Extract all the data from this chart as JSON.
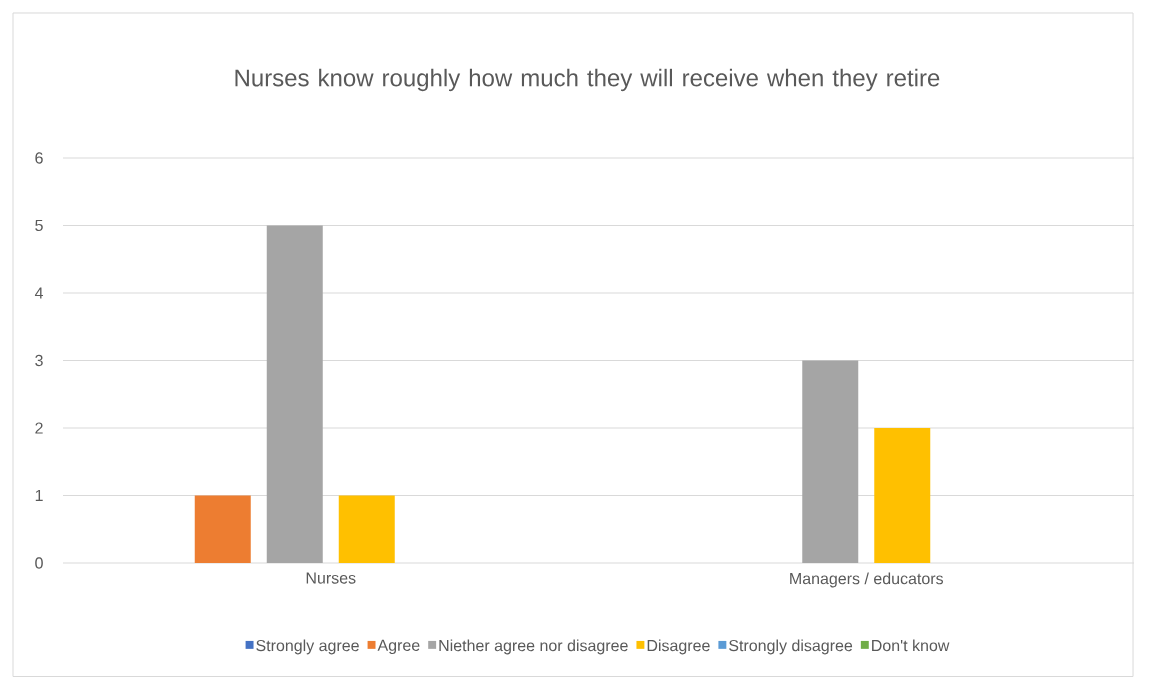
{
  "chart_data": {
    "type": "bar",
    "title": "Nurses know roughly how much they will receive when they retire",
    "categories": [
      "Nurses",
      "Managers / educators"
    ],
    "series": [
      {
        "name": "Strongly agree",
        "color": "#4472c4",
        "values": [
          0,
          0
        ]
      },
      {
        "name": "Agree",
        "color": "#ed7d31",
        "values": [
          1,
          0
        ]
      },
      {
        "name": "Niether agree nor disagree",
        "color": "#a5a5a5",
        "values": [
          5,
          3
        ]
      },
      {
        "name": "Disagree",
        "color": "#ffc000",
        "values": [
          1,
          2
        ]
      },
      {
        "name": "Strongly disagree",
        "color": "#5b9bd5",
        "values": [
          0,
          0
        ]
      },
      {
        "name": "Don't know",
        "color": "#70ad47",
        "values": [
          0,
          0
        ]
      }
    ],
    "ylim": [
      0,
      6
    ],
    "yticks": [
      0,
      1,
      2,
      3,
      4,
      5,
      6
    ],
    "grid": "y",
    "legend": "bottom"
  }
}
